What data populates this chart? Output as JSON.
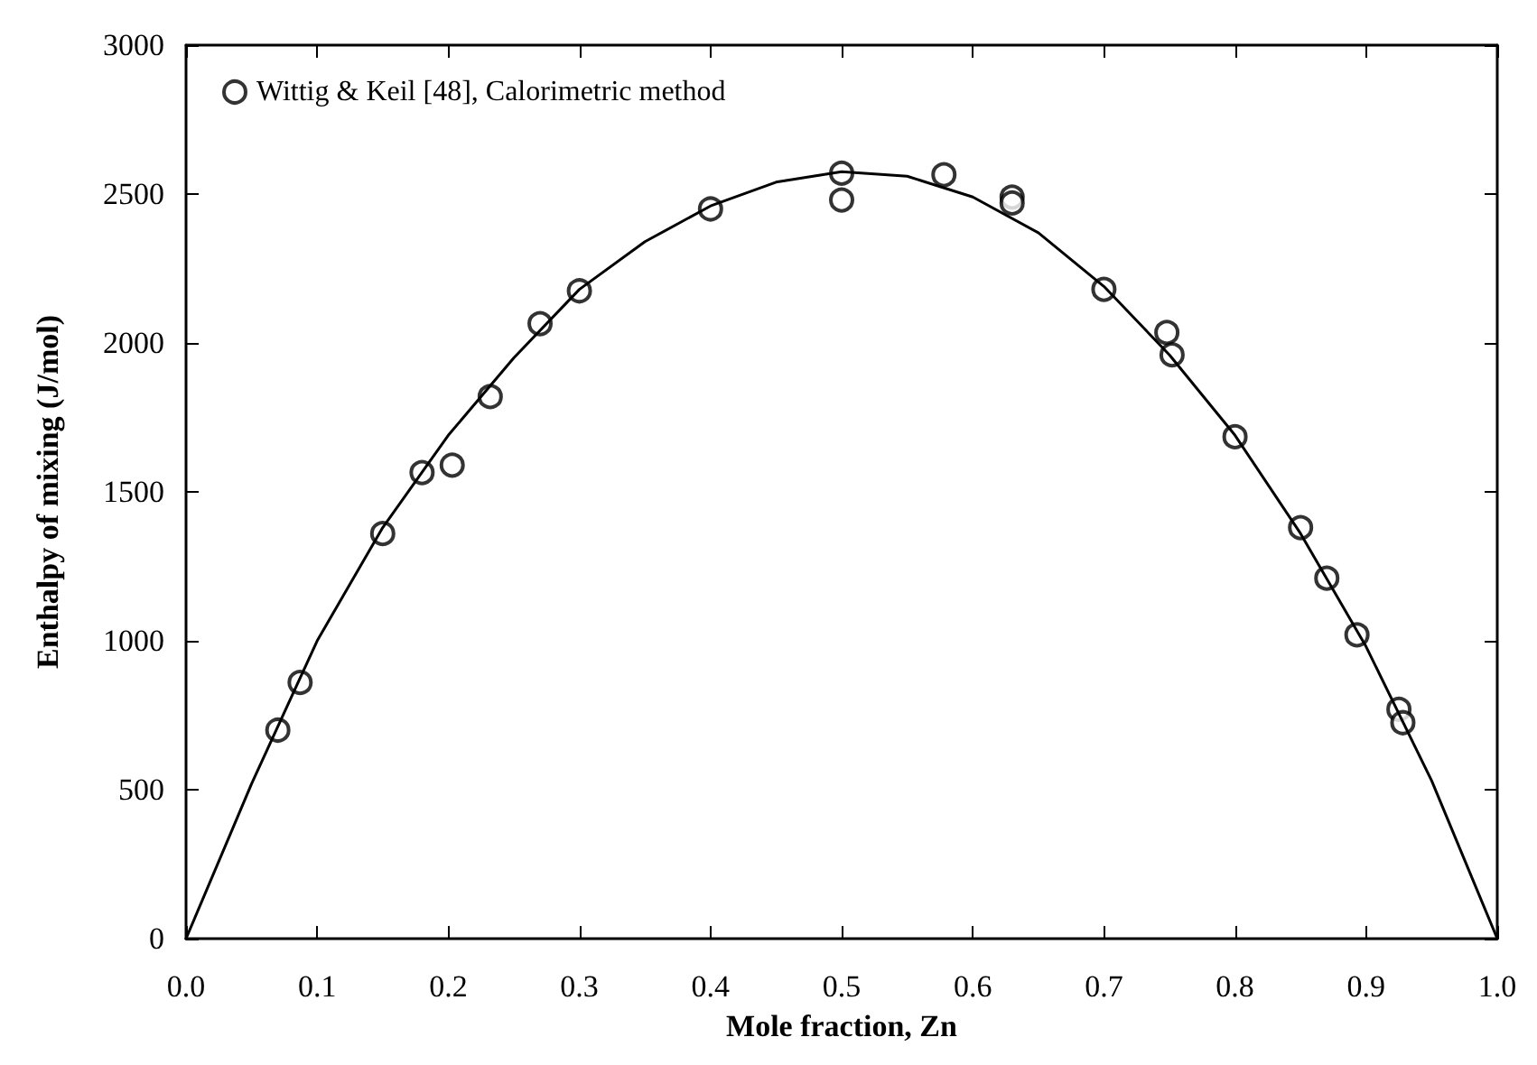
{
  "chart_data": {
    "type": "scatter",
    "xlabel": "Mole fraction, Zn",
    "ylabel": "Enthalpy of mixing (J/mol)",
    "xlim": [
      0,
      1
    ],
    "ylim": [
      0,
      3000
    ],
    "xticks": [
      {
        "value": 0,
        "label": "0.0"
      },
      {
        "value": 0.1,
        "label": "0.1"
      },
      {
        "value": 0.2,
        "label": "0.2"
      },
      {
        "value": 0.3,
        "label": "0.3"
      },
      {
        "value": 0.4,
        "label": "0.4"
      },
      {
        "value": 0.5,
        "label": "0.5"
      },
      {
        "value": 0.6,
        "label": "0.6"
      },
      {
        "value": 0.7,
        "label": "0.7"
      },
      {
        "value": 0.8,
        "label": "0.8"
      },
      {
        "value": 0.9,
        "label": "0.9"
      },
      {
        "value": 1,
        "label": "1.0"
      }
    ],
    "yticks": [
      0,
      500,
      1000,
      1500,
      2000,
      2500,
      3000
    ],
    "legend": "top left",
    "grid": false,
    "series": [
      {
        "name": "Wittig & Keil [48], Calorimetric method",
        "marker": "circle",
        "color": "#000000",
        "x": [
          0.07,
          0.087,
          0.15,
          0.18,
          0.203,
          0.232,
          0.27,
          0.3,
          0.4,
          0.5,
          0.5,
          0.578,
          0.63,
          0.63,
          0.7,
          0.748,
          0.752,
          0.8,
          0.85,
          0.87,
          0.893,
          0.925,
          0.928
        ],
        "values": [
          700,
          860,
          1360,
          1565,
          1590,
          1820,
          2065,
          2175,
          2450,
          2570,
          2480,
          2565,
          2490,
          2470,
          2180,
          2035,
          1960,
          1685,
          1380,
          1210,
          1020,
          770,
          725
        ]
      },
      {
        "type": "line",
        "marker": "none",
        "line_style": "solid",
        "color": "#000000",
        "x": [
          0,
          0.05,
          0.1,
          0.15,
          0.2,
          0.25,
          0.3,
          0.35,
          0.4,
          0.45,
          0.5,
          0.55,
          0.6,
          0.65,
          0.7,
          0.75,
          0.8,
          0.85,
          0.9,
          0.95,
          1
        ],
        "values": [
          0,
          520,
          1000,
          1380,
          1690,
          1950,
          2180,
          2340,
          2460,
          2540,
          2575,
          2560,
          2490,
          2370,
          2190,
          1960,
          1690,
          1360,
          980,
          530,
          0
        ]
      }
    ]
  }
}
